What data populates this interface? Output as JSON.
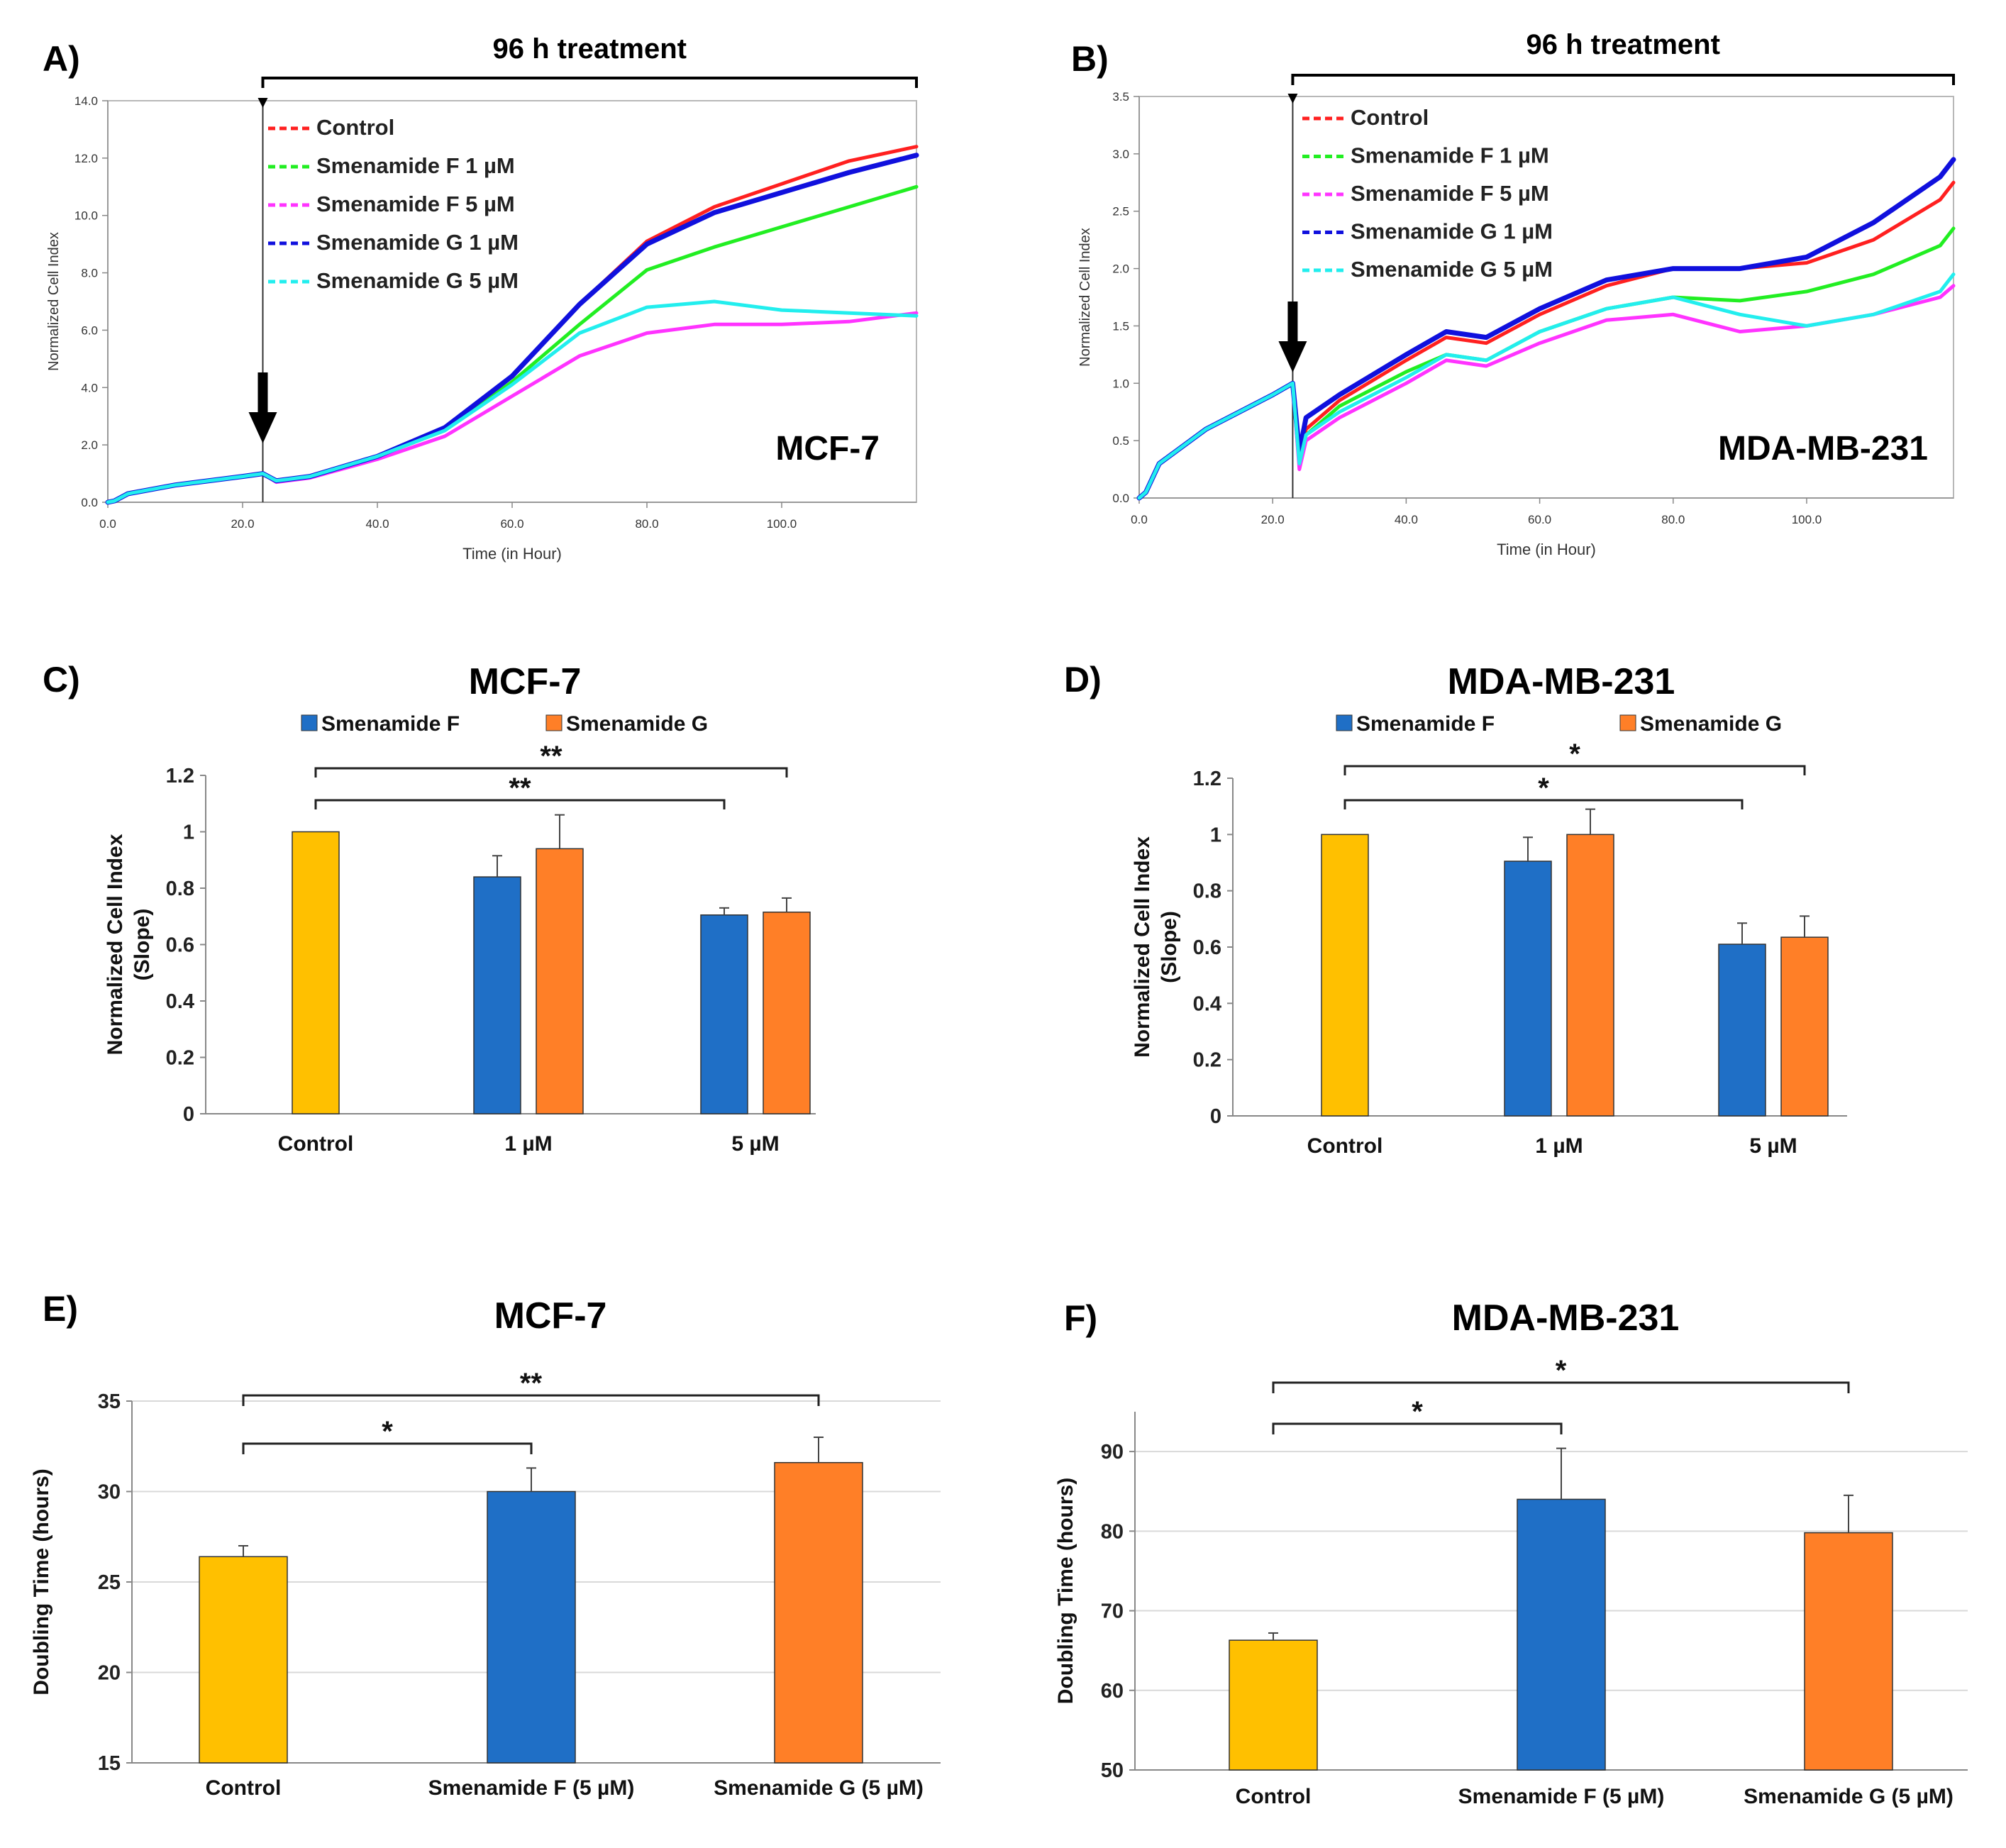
{
  "chart_data": [
    {
      "panel": "A)",
      "type": "line",
      "title": "",
      "bracket_label": "96 h treatment",
      "cell_line": "MCF-7",
      "xlabel": "Time (in Hour)",
      "ylabel": "Normalized Cell Index",
      "xlim": [
        0,
        120
      ],
      "ylim": [
        0,
        14
      ],
      "xticks": [
        0,
        20,
        40,
        60,
        80,
        100
      ],
      "xtick_labels": [
        "0.0",
        "20.0",
        "40.0",
        "60.0",
        "80.0",
        "100.0"
      ],
      "yticks": [
        0,
        2,
        4,
        6,
        8,
        10,
        12,
        14
      ],
      "ytick_labels": [
        "0.0",
        "2.0",
        "4.0",
        "6.0",
        "8.0",
        "10.0",
        "12.0",
        "14.0"
      ],
      "treatment_time": 23,
      "treatment_end": 120,
      "legend": [
        "Control",
        "Smenamide F 1 µM",
        "Smenamide F 5 µM",
        "Smenamide G 1 µM",
        "Smenamide G 5 µM"
      ],
      "series": [
        {
          "name": "Control",
          "color": "#ff2020",
          "x": [
            0,
            1,
            3,
            10,
            20,
            23,
            25,
            30,
            40,
            50,
            60,
            70,
            80,
            90,
            100,
            110,
            120
          ],
          "y": [
            0,
            0.05,
            0.3,
            0.6,
            0.9,
            1.0,
            0.75,
            0.9,
            1.6,
            2.6,
            4.4,
            6.9,
            9.1,
            10.3,
            11.1,
            11.9,
            12.4
          ]
        },
        {
          "name": "Smenamide F 1 µM",
          "color": "#22ee22",
          "x": [
            0,
            1,
            3,
            10,
            20,
            23,
            25,
            30,
            40,
            50,
            60,
            70,
            80,
            90,
            100,
            110,
            120
          ],
          "y": [
            0,
            0.05,
            0.3,
            0.6,
            0.9,
            1.0,
            0.75,
            0.9,
            1.6,
            2.5,
            4.2,
            6.2,
            8.1,
            8.9,
            9.6,
            10.3,
            11.0
          ]
        },
        {
          "name": "Smenamide F 5 µM",
          "color": "#ff33ff",
          "x": [
            0,
            1,
            3,
            10,
            20,
            23,
            25,
            30,
            40,
            50,
            60,
            70,
            80,
            90,
            100,
            110,
            120
          ],
          "y": [
            0,
            0.05,
            0.3,
            0.6,
            0.9,
            1.0,
            0.7,
            0.85,
            1.5,
            2.3,
            3.7,
            5.1,
            5.9,
            6.2,
            6.2,
            6.3,
            6.6
          ]
        },
        {
          "name": "Smenamide G 1 µM",
          "color": "#1010dd",
          "x": [
            0,
            1,
            3,
            10,
            20,
            23,
            25,
            30,
            40,
            50,
            60,
            70,
            80,
            90,
            100,
            110,
            120
          ],
          "y": [
            0,
            0.05,
            0.3,
            0.6,
            0.9,
            1.0,
            0.75,
            0.9,
            1.6,
            2.6,
            4.4,
            6.9,
            9.0,
            10.1,
            10.8,
            11.5,
            12.1
          ]
        },
        {
          "name": "Smenamide G 5 µM",
          "color": "#22eeee",
          "x": [
            0,
            1,
            3,
            10,
            20,
            23,
            25,
            30,
            40,
            50,
            60,
            70,
            80,
            90,
            100,
            110,
            120
          ],
          "y": [
            0,
            0.05,
            0.3,
            0.6,
            0.9,
            1.0,
            0.75,
            0.9,
            1.6,
            2.5,
            4.1,
            5.9,
            6.8,
            7.0,
            6.7,
            6.6,
            6.5
          ]
        }
      ]
    },
    {
      "panel": "B)",
      "type": "line",
      "title": "",
      "bracket_label": "96 h treatment",
      "cell_line": "MDA-MB-231",
      "xlabel": "Time (in Hour)",
      "ylabel": "Normalized Cell Index",
      "xlim": [
        0,
        122
      ],
      "ylim": [
        0,
        3.5
      ],
      "xticks": [
        0,
        20,
        40,
        60,
        80,
        100
      ],
      "xtick_labels": [
        "0.0",
        "20.0",
        "40.0",
        "60.0",
        "80.0",
        "100.0"
      ],
      "yticks": [
        0,
        0.5,
        1.0,
        1.5,
        2.0,
        2.5,
        3.0,
        3.5
      ],
      "ytick_labels": [
        "0.0",
        "0.5",
        "1.0",
        "1.5",
        "2.0",
        "2.5",
        "3.0",
        "3.5"
      ],
      "treatment_time": 23,
      "treatment_end": 122,
      "legend": [
        "Control",
        "Smenamide F 1 µM",
        "Smenamide F 5 µM",
        "Smenamide G 1 µM",
        "Smenamide G 5 µM"
      ],
      "series": [
        {
          "name": "Control",
          "color": "#ff2020",
          "x": [
            0,
            1,
            3,
            10,
            20,
            23,
            24,
            25,
            30,
            40,
            46,
            52,
            60,
            70,
            80,
            90,
            100,
            110,
            120,
            122
          ],
          "y": [
            0,
            0.05,
            0.3,
            0.6,
            0.9,
            1.0,
            0.35,
            0.6,
            0.85,
            1.2,
            1.4,
            1.35,
            1.6,
            1.85,
            2.0,
            2.0,
            2.05,
            2.25,
            2.6,
            2.75
          ]
        },
        {
          "name": "Smenamide F 1 µM",
          "color": "#22ee22",
          "x": [
            0,
            1,
            3,
            10,
            20,
            23,
            24,
            25,
            30,
            40,
            46,
            52,
            60,
            70,
            80,
            90,
            100,
            110,
            120,
            122
          ],
          "y": [
            0,
            0.05,
            0.3,
            0.6,
            0.9,
            1.0,
            0.3,
            0.55,
            0.8,
            1.1,
            1.25,
            1.2,
            1.45,
            1.65,
            1.75,
            1.72,
            1.8,
            1.95,
            2.2,
            2.35
          ]
        },
        {
          "name": "Smenamide F 5 µM",
          "color": "#ff33ff",
          "x": [
            0,
            1,
            3,
            10,
            20,
            23,
            24,
            25,
            30,
            40,
            46,
            52,
            60,
            70,
            80,
            90,
            100,
            110,
            120,
            122
          ],
          "y": [
            0,
            0.05,
            0.3,
            0.6,
            0.9,
            1.0,
            0.25,
            0.5,
            0.7,
            1.0,
            1.2,
            1.15,
            1.35,
            1.55,
            1.6,
            1.45,
            1.5,
            1.6,
            1.75,
            1.85
          ]
        },
        {
          "name": "Smenamide G 1 µM",
          "color": "#1010dd",
          "x": [
            0,
            1,
            3,
            10,
            20,
            23,
            24,
            25,
            30,
            40,
            46,
            52,
            60,
            70,
            80,
            90,
            100,
            110,
            120,
            122
          ],
          "y": [
            0,
            0.05,
            0.3,
            0.6,
            0.9,
            1.0,
            0.4,
            0.7,
            0.9,
            1.25,
            1.45,
            1.4,
            1.65,
            1.9,
            2.0,
            2.0,
            2.1,
            2.4,
            2.8,
            2.95
          ]
        },
        {
          "name": "Smenamide G 5 µM",
          "color": "#22eeee",
          "x": [
            0,
            1,
            3,
            10,
            20,
            23,
            24,
            25,
            30,
            40,
            46,
            52,
            60,
            70,
            80,
            90,
            100,
            110,
            120,
            122
          ],
          "y": [
            0,
            0.05,
            0.3,
            0.6,
            0.9,
            1.0,
            0.3,
            0.55,
            0.75,
            1.05,
            1.25,
            1.2,
            1.45,
            1.65,
            1.75,
            1.6,
            1.5,
            1.6,
            1.8,
            1.95
          ]
        }
      ]
    },
    {
      "panel": "C)",
      "type": "bar",
      "title": "MCF-7",
      "ylabel": [
        "Normalized Cell Index",
        "(Slope)"
      ],
      "ylim": [
        0,
        1.2
      ],
      "yticks": [
        0,
        0.2,
        0.4,
        0.6,
        0.8,
        1,
        1.2
      ],
      "ytick_labels": [
        "0",
        "0.2",
        "0.4",
        "0.6",
        "0.8",
        "1",
        "1.2"
      ],
      "categories": [
        "Control",
        "1 µM",
        "5 µM"
      ],
      "legend": [
        "Smenamide F",
        "Smenamide G"
      ],
      "bars": [
        {
          "category": 0,
          "slot": 0,
          "value": 1.0,
          "error": 0,
          "color": "#ffc000"
        },
        {
          "category": 1,
          "slot": -1,
          "value": 0.84,
          "error": 0.075,
          "color": "#1f6fc6"
        },
        {
          "category": 1,
          "slot": 1,
          "value": 0.94,
          "error": 0.12,
          "color": "#ff7f27"
        },
        {
          "category": 2,
          "slot": -1,
          "value": 0.705,
          "error": 0.025,
          "color": "#1f6fc6"
        },
        {
          "category": 2,
          "slot": 1,
          "value": 0.715,
          "error": 0.05,
          "color": "#ff7f27"
        }
      ],
      "significance": [
        {
          "from": 0,
          "to": 2,
          "to_slot": -1,
          "label": "**",
          "level": 1
        },
        {
          "from": 0,
          "to": 2,
          "to_slot": 1,
          "label": "**",
          "level": 2
        }
      ]
    },
    {
      "panel": "D)",
      "type": "bar",
      "title": "MDA-MB-231",
      "ylabel": [
        "Normalized Cell Index",
        "(Slope)"
      ],
      "ylim": [
        0,
        1.2
      ],
      "yticks": [
        0,
        0.2,
        0.4,
        0.6,
        0.8,
        1,
        1.2
      ],
      "ytick_labels": [
        "0",
        "0.2",
        "0.4",
        "0.6",
        "0.8",
        "1",
        "1.2"
      ],
      "categories": [
        "Control",
        "1 µM",
        "5 µM"
      ],
      "legend": [
        "Smenamide F",
        "Smenamide G"
      ],
      "bars": [
        {
          "category": 0,
          "slot": 0,
          "value": 1.0,
          "error": 0,
          "color": "#ffc000"
        },
        {
          "category": 1,
          "slot": -1,
          "value": 0.905,
          "error": 0.085,
          "color": "#1f6fc6"
        },
        {
          "category": 1,
          "slot": 1,
          "value": 1.0,
          "error": 0.09,
          "color": "#ff7f27"
        },
        {
          "category": 2,
          "slot": -1,
          "value": 0.61,
          "error": 0.075,
          "color": "#1f6fc6"
        },
        {
          "category": 2,
          "slot": 1,
          "value": 0.635,
          "error": 0.075,
          "color": "#ff7f27"
        }
      ],
      "significance": [
        {
          "from": 0,
          "to": 2,
          "to_slot": -1,
          "label": "*",
          "level": 1
        },
        {
          "from": 0,
          "to": 2,
          "to_slot": 1,
          "label": "*",
          "level": 2
        }
      ]
    },
    {
      "panel": "E)",
      "type": "bar",
      "title": "MCF-7",
      "ylabel": [
        "Doubling Time (hours)"
      ],
      "ylim": [
        15,
        35
      ],
      "yticks": [
        15,
        20,
        25,
        30,
        35
      ],
      "ytick_labels": [
        "15",
        "20",
        "25",
        "30",
        "35"
      ],
      "categories": [
        "Control",
        "Smenamide F (5 µM)",
        "Smenamide G  (5 µM)"
      ],
      "legend": [],
      "bars": [
        {
          "category": 0,
          "slot": 0,
          "value": 26.4,
          "error": 0.6,
          "color": "#ffc000"
        },
        {
          "category": 1,
          "slot": 0,
          "value": 30.0,
          "error": 1.3,
          "color": "#1f6fc6"
        },
        {
          "category": 2,
          "slot": 0,
          "value": 31.6,
          "error": 1.4,
          "color": "#ff7f27"
        }
      ],
      "significance": [
        {
          "from": 0,
          "to": 1,
          "to_slot": 0,
          "label": "*",
          "level": 1
        },
        {
          "from": 0,
          "to": 2,
          "to_slot": 0,
          "label": "**",
          "level": 2
        }
      ]
    },
    {
      "panel": "F)",
      "type": "bar",
      "title": "MDA-MB-231",
      "ylabel": [
        "Doubling Time (hours)"
      ],
      "ylim": [
        50,
        95
      ],
      "yticks": [
        50,
        60,
        70,
        80,
        90
      ],
      "ytick_labels": [
        "50",
        "60",
        "70",
        "80",
        "90"
      ],
      "categories": [
        "Control",
        "Smenamide F (5 µM)",
        "Smenamide G  (5 µM)"
      ],
      "legend": [],
      "bars": [
        {
          "category": 0,
          "slot": 0,
          "value": 66.3,
          "error": 0.9,
          "color": "#ffc000"
        },
        {
          "category": 1,
          "slot": 0,
          "value": 84.0,
          "error": 6.4,
          "color": "#1f6fc6"
        },
        {
          "category": 2,
          "slot": 0,
          "value": 79.8,
          "error": 4.7,
          "color": "#ff7f27"
        }
      ],
      "significance": [
        {
          "from": 0,
          "to": 1,
          "to_slot": 0,
          "label": "*",
          "level": 1
        },
        {
          "from": 0,
          "to": 2,
          "to_slot": 0,
          "label": "*",
          "level": 2
        }
      ]
    }
  ]
}
